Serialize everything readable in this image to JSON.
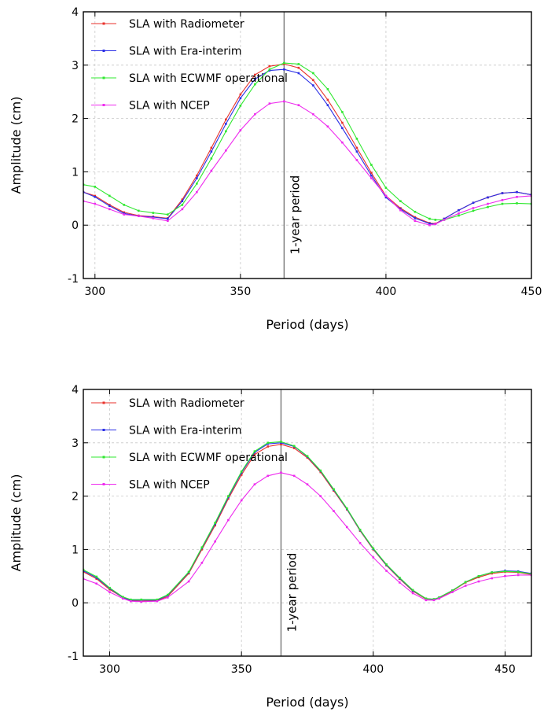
{
  "chart_data": [
    {
      "type": "line",
      "xlabel": "Period (days)",
      "ylabel": "Amplitude (cm)",
      "xlim": [
        296,
        450
      ],
      "ylim": [
        -1,
        4
      ],
      "xticks": [
        300,
        350,
        400,
        450
      ],
      "yticks": [
        -1,
        0,
        1,
        2,
        3,
        4
      ],
      "grid": true,
      "legend_position": "top-left",
      "annotation": {
        "text": "1-year period",
        "x": 365
      },
      "series": [
        {
          "name": "SLA with Radiometer",
          "color": "#e8322b",
          "x": [
            296,
            300,
            305,
            310,
            315,
            320,
            325,
            330,
            335,
            340,
            345,
            350,
            355,
            360,
            365,
            370,
            375,
            380,
            385,
            390,
            395,
            400,
            405,
            410,
            415,
            417,
            420,
            425,
            430,
            435,
            440,
            445,
            450
          ],
          "y": [
            0.62,
            0.55,
            0.38,
            0.24,
            0.18,
            0.16,
            0.13,
            0.48,
            0.93,
            1.45,
            1.98,
            2.45,
            2.82,
            2.98,
            3.02,
            2.95,
            2.72,
            2.35,
            1.92,
            1.45,
            0.98,
            0.55,
            0.32,
            0.15,
            0.04,
            0.03,
            0.12,
            0.28,
            0.42,
            0.52,
            0.6,
            0.62,
            0.57
          ]
        },
        {
          "name": "SLA with Era-interim",
          "color": "#2a2ee6",
          "x": [
            296,
            300,
            305,
            310,
            315,
            320,
            325,
            330,
            335,
            340,
            345,
            350,
            355,
            360,
            365,
            370,
            375,
            380,
            385,
            390,
            395,
            400,
            405,
            410,
            415,
            417,
            420,
            425,
            430,
            435,
            440,
            445,
            450
          ],
          "y": [
            0.62,
            0.53,
            0.36,
            0.22,
            0.17,
            0.15,
            0.12,
            0.45,
            0.88,
            1.38,
            1.9,
            2.38,
            2.74,
            2.9,
            2.92,
            2.85,
            2.62,
            2.25,
            1.82,
            1.38,
            0.93,
            0.52,
            0.3,
            0.13,
            0.03,
            0.02,
            0.12,
            0.28,
            0.42,
            0.52,
            0.6,
            0.62,
            0.57
          ]
        },
        {
          "name": "SLA with ECWMF operational",
          "color": "#2fe82f",
          "x": [
            296,
            300,
            305,
            310,
            315,
            320,
            325,
            330,
            335,
            340,
            345,
            350,
            355,
            360,
            365,
            370,
            375,
            380,
            385,
            390,
            395,
            400,
            405,
            410,
            415,
            417,
            420,
            425,
            430,
            435,
            440,
            445,
            450
          ],
          "y": [
            0.76,
            0.72,
            0.55,
            0.38,
            0.27,
            0.23,
            0.2,
            0.38,
            0.78,
            1.25,
            1.76,
            2.24,
            2.64,
            2.92,
            3.04,
            3.02,
            2.85,
            2.55,
            2.12,
            1.62,
            1.13,
            0.7,
            0.45,
            0.25,
            0.12,
            0.1,
            0.1,
            0.18,
            0.27,
            0.34,
            0.4,
            0.41,
            0.4
          ]
        },
        {
          "name": "SLA with NCEP",
          "color": "#ee2bee",
          "x": [
            296,
            300,
            305,
            310,
            315,
            320,
            325,
            330,
            335,
            340,
            345,
            350,
            355,
            360,
            365,
            370,
            375,
            380,
            385,
            390,
            395,
            400,
            405,
            410,
            415,
            417,
            420,
            425,
            430,
            435,
            440,
            445,
            450
          ],
          "y": [
            0.45,
            0.4,
            0.3,
            0.2,
            0.17,
            0.13,
            0.08,
            0.3,
            0.62,
            1.02,
            1.4,
            1.78,
            2.08,
            2.28,
            2.32,
            2.25,
            2.08,
            1.85,
            1.55,
            1.22,
            0.88,
            0.55,
            0.28,
            0.08,
            0.0,
            0.02,
            0.1,
            0.22,
            0.32,
            0.4,
            0.47,
            0.53,
            0.55
          ]
        }
      ]
    },
    {
      "type": "line",
      "xlabel": "Period (days)",
      "ylabel": "Amplitude (cm)",
      "xlim": [
        290,
        460
      ],
      "ylim": [
        -1,
        4
      ],
      "xticks": [
        300,
        350,
        400,
        450
      ],
      "yticks": [
        -1,
        0,
        1,
        2,
        3,
        4
      ],
      "grid": true,
      "legend_position": "top-left",
      "annotation": {
        "text": "1-year period",
        "x": 365
      },
      "series": [
        {
          "name": "SLA with Radiometer",
          "color": "#e8322b",
          "x": [
            290,
            295,
            300,
            305,
            308,
            312,
            318,
            322,
            330,
            335,
            340,
            345,
            350,
            355,
            360,
            365,
            370,
            375,
            380,
            385,
            390,
            395,
            400,
            405,
            410,
            415,
            420,
            423,
            425,
            430,
            435,
            440,
            445,
            450,
            455,
            460
          ],
          "y": [
            0.58,
            0.45,
            0.25,
            0.1,
            0.04,
            0.03,
            0.04,
            0.12,
            0.55,
            1.0,
            1.45,
            1.95,
            2.4,
            2.78,
            2.93,
            2.97,
            2.9,
            2.72,
            2.45,
            2.1,
            1.75,
            1.35,
            1.0,
            0.7,
            0.45,
            0.22,
            0.07,
            0.06,
            0.09,
            0.22,
            0.38,
            0.48,
            0.55,
            0.58,
            0.57,
            0.53
          ]
        },
        {
          "name": "SLA with Era-interim",
          "color": "#2a2ee6",
          "x": [
            290,
            295,
            300,
            305,
            308,
            312,
            318,
            322,
            330,
            335,
            340,
            345,
            350,
            355,
            360,
            365,
            370,
            375,
            380,
            385,
            390,
            395,
            400,
            405,
            410,
            415,
            420,
            423,
            425,
            430,
            435,
            440,
            445,
            450,
            455,
            460
          ],
          "y": [
            0.6,
            0.47,
            0.27,
            0.1,
            0.05,
            0.05,
            0.05,
            0.14,
            0.57,
            1.03,
            1.48,
            1.98,
            2.44,
            2.82,
            2.98,
            3.0,
            2.93,
            2.74,
            2.47,
            2.12,
            1.76,
            1.36,
            1.01,
            0.71,
            0.46,
            0.23,
            0.08,
            0.06,
            0.1,
            0.23,
            0.39,
            0.5,
            0.57,
            0.6,
            0.59,
            0.55
          ]
        },
        {
          "name": "SLA with ECWMF operational",
          "color": "#2fe82f",
          "x": [
            290,
            295,
            300,
            305,
            308,
            312,
            318,
            322,
            330,
            335,
            340,
            345,
            350,
            355,
            360,
            365,
            370,
            375,
            380,
            385,
            390,
            395,
            400,
            405,
            410,
            415,
            420,
            423,
            425,
            430,
            435,
            440,
            445,
            450,
            455,
            460
          ],
          "y": [
            0.62,
            0.49,
            0.28,
            0.11,
            0.06,
            0.06,
            0.06,
            0.15,
            0.58,
            1.04,
            1.5,
            2.0,
            2.46,
            2.84,
            3.0,
            3.02,
            2.94,
            2.75,
            2.48,
            2.13,
            1.77,
            1.37,
            1.02,
            0.72,
            0.47,
            0.24,
            0.08,
            0.07,
            0.1,
            0.23,
            0.39,
            0.5,
            0.57,
            0.59,
            0.58,
            0.54
          ]
        },
        {
          "name": "SLA with NCEP",
          "color": "#ee2bee",
          "x": [
            290,
            295,
            300,
            305,
            308,
            312,
            318,
            322,
            330,
            335,
            340,
            345,
            350,
            355,
            360,
            365,
            370,
            375,
            380,
            385,
            390,
            395,
            400,
            405,
            410,
            415,
            420,
            423,
            425,
            430,
            435,
            440,
            445,
            450,
            455,
            460
          ],
          "y": [
            0.45,
            0.36,
            0.2,
            0.08,
            0.03,
            0.02,
            0.03,
            0.1,
            0.4,
            0.75,
            1.15,
            1.55,
            1.92,
            2.22,
            2.38,
            2.44,
            2.38,
            2.22,
            2.0,
            1.72,
            1.42,
            1.12,
            0.85,
            0.6,
            0.38,
            0.18,
            0.05,
            0.05,
            0.08,
            0.2,
            0.32,
            0.4,
            0.46,
            0.5,
            0.52,
            0.52
          ]
        }
      ]
    }
  ]
}
